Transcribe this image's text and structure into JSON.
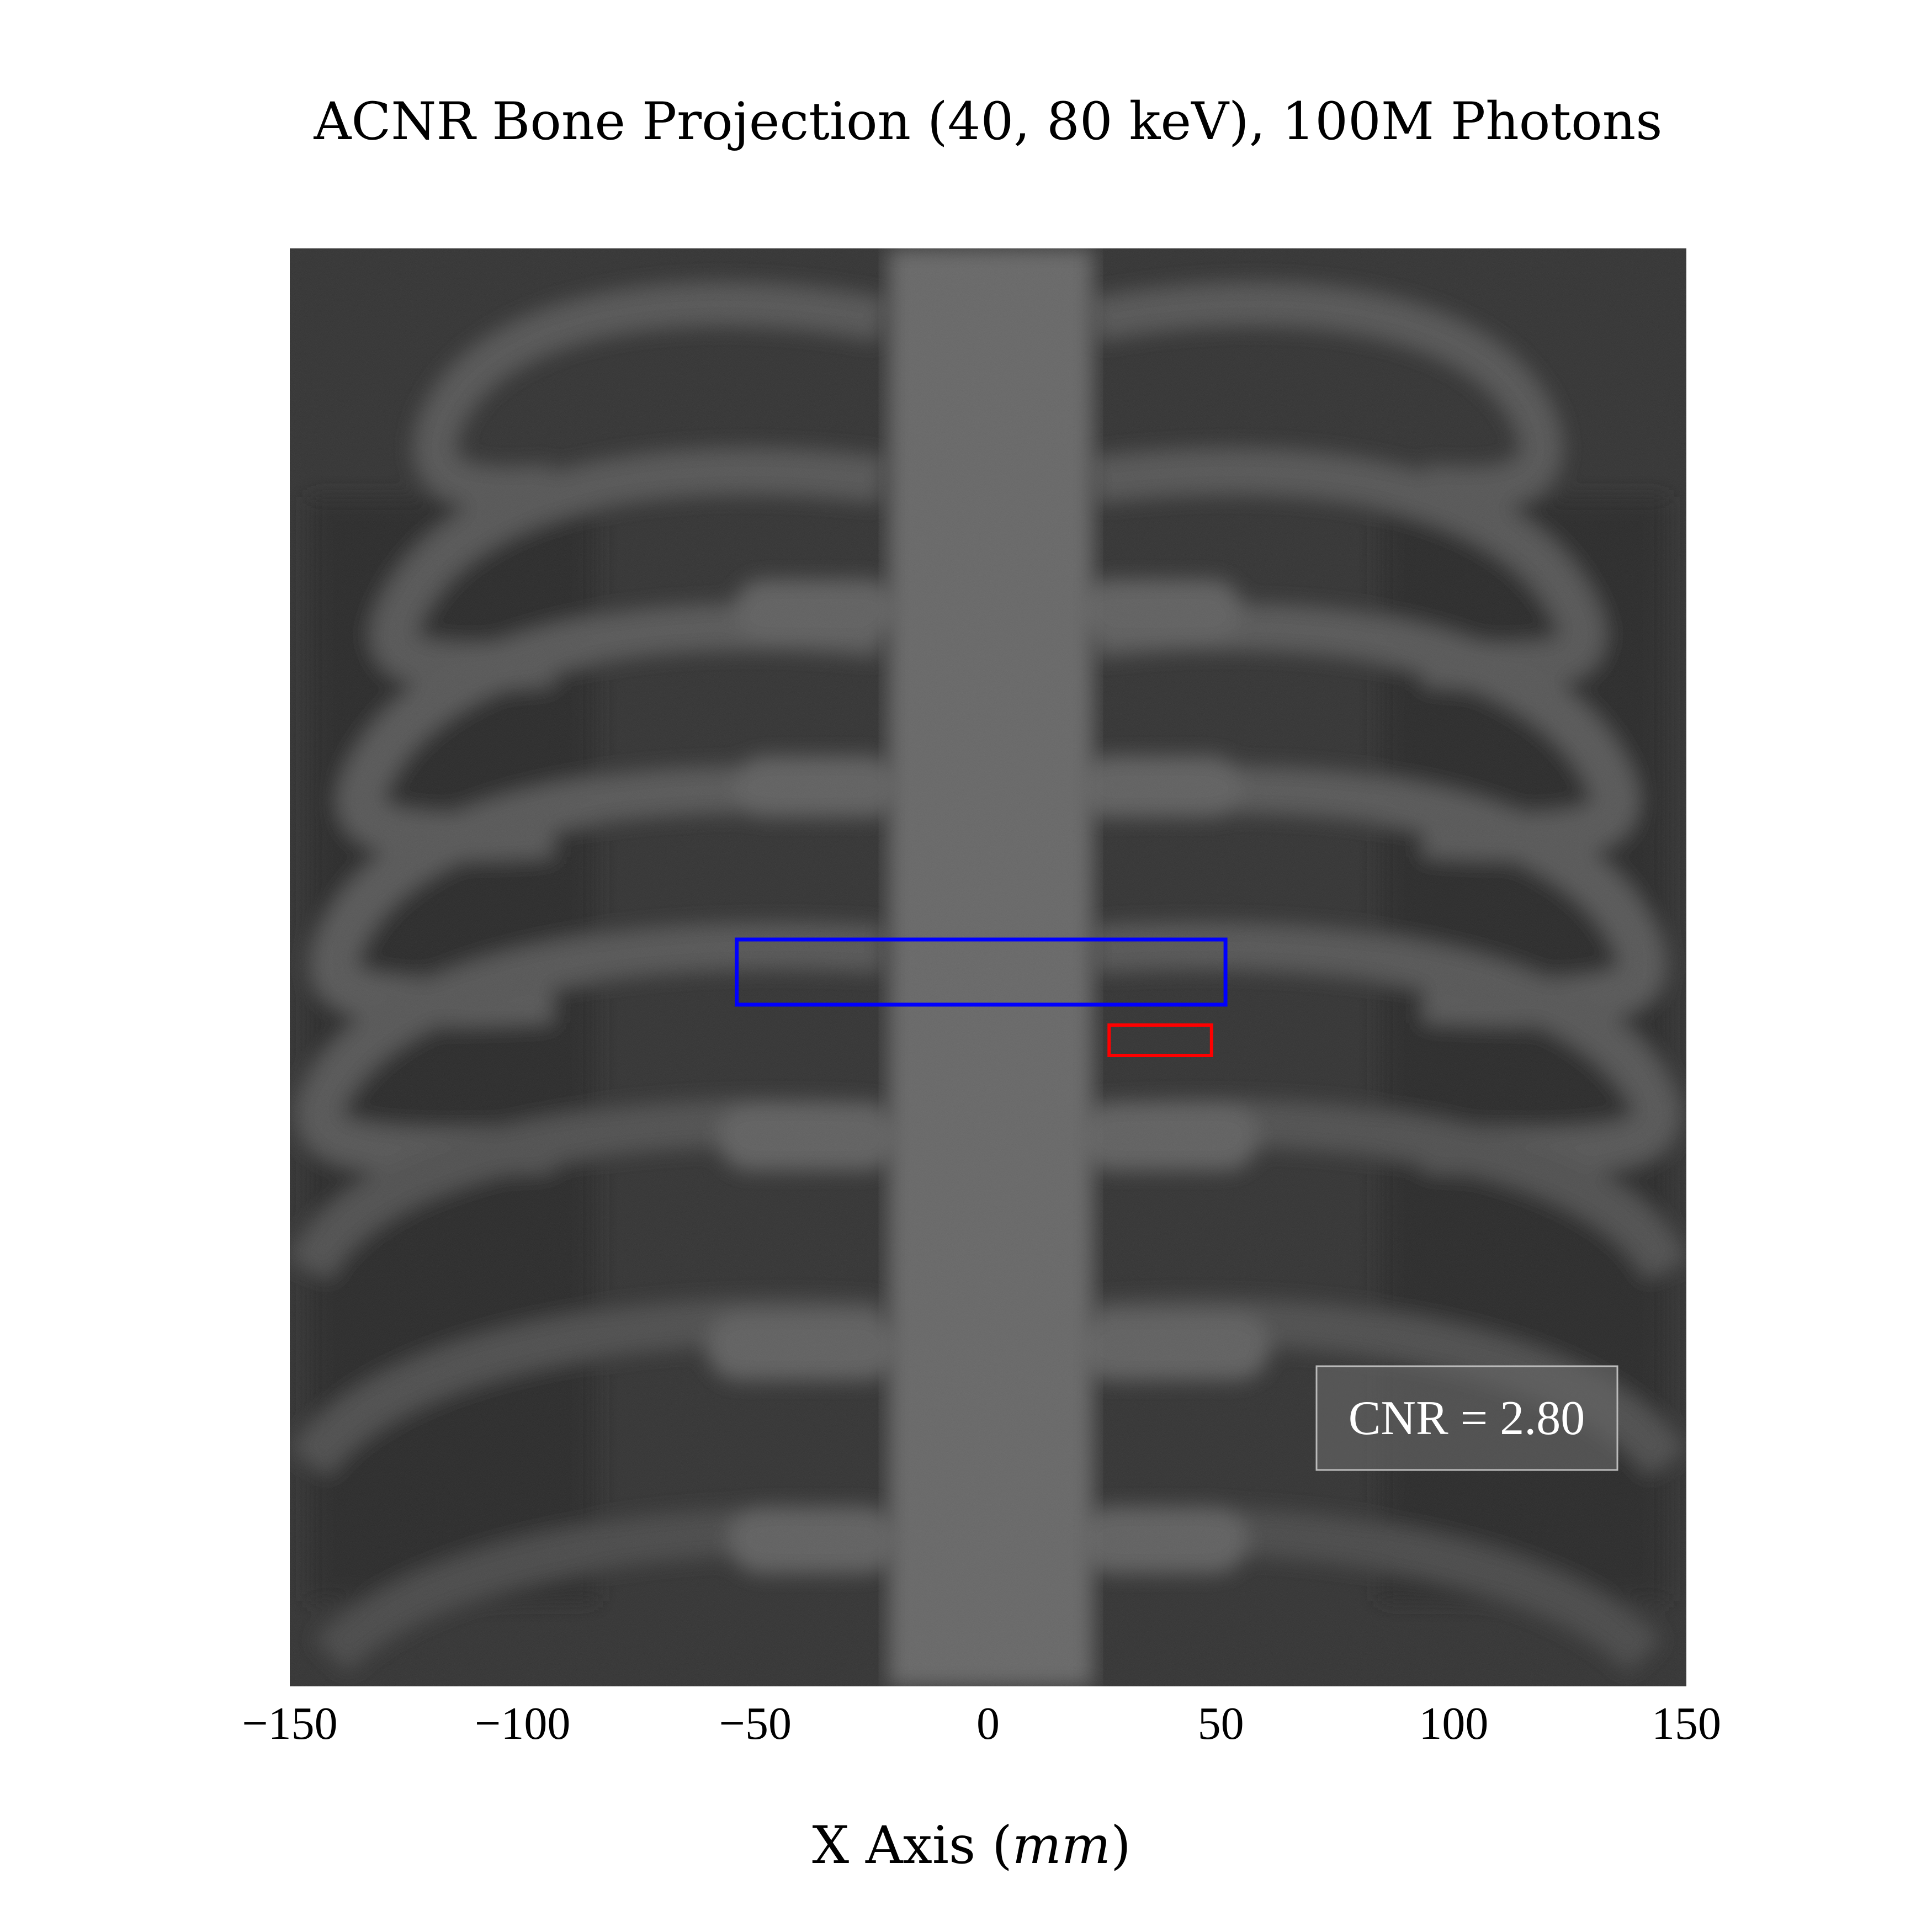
{
  "chart_data": {
    "type": "heatmap",
    "title": "ACNR Bone Projection (40, 80 keV), 100M Photons",
    "xlabel": "X Axis (mm)",
    "xlabel_parts": {
      "text": "X Axis (",
      "unit": "mm",
      "close": ")"
    },
    "ylabel": "",
    "xlim": [
      -150,
      150
    ],
    "x_ticks": [
      -150,
      -100,
      -50,
      0,
      50,
      100,
      150
    ],
    "x_tick_labels": [
      "−150",
      "−100",
      "−50",
      "0",
      "50",
      "100",
      "150"
    ],
    "grid": false,
    "colormap": "gray",
    "image_description_colors": {
      "background": "#333333",
      "bone": "#5a5a5a",
      "spine": "#6a6a6a"
    },
    "regions_of_interest": [
      {
        "name": "signal ROI",
        "color": "#0000ff",
        "x_range": [
          -54,
          51
        ]
      },
      {
        "name": "background ROI",
        "color": "#ff0000",
        "x_range": [
          26,
          48
        ]
      }
    ],
    "annotation": {
      "text": "CNR = 2.80",
      "value": 2.8,
      "placement": "lower-right"
    }
  }
}
